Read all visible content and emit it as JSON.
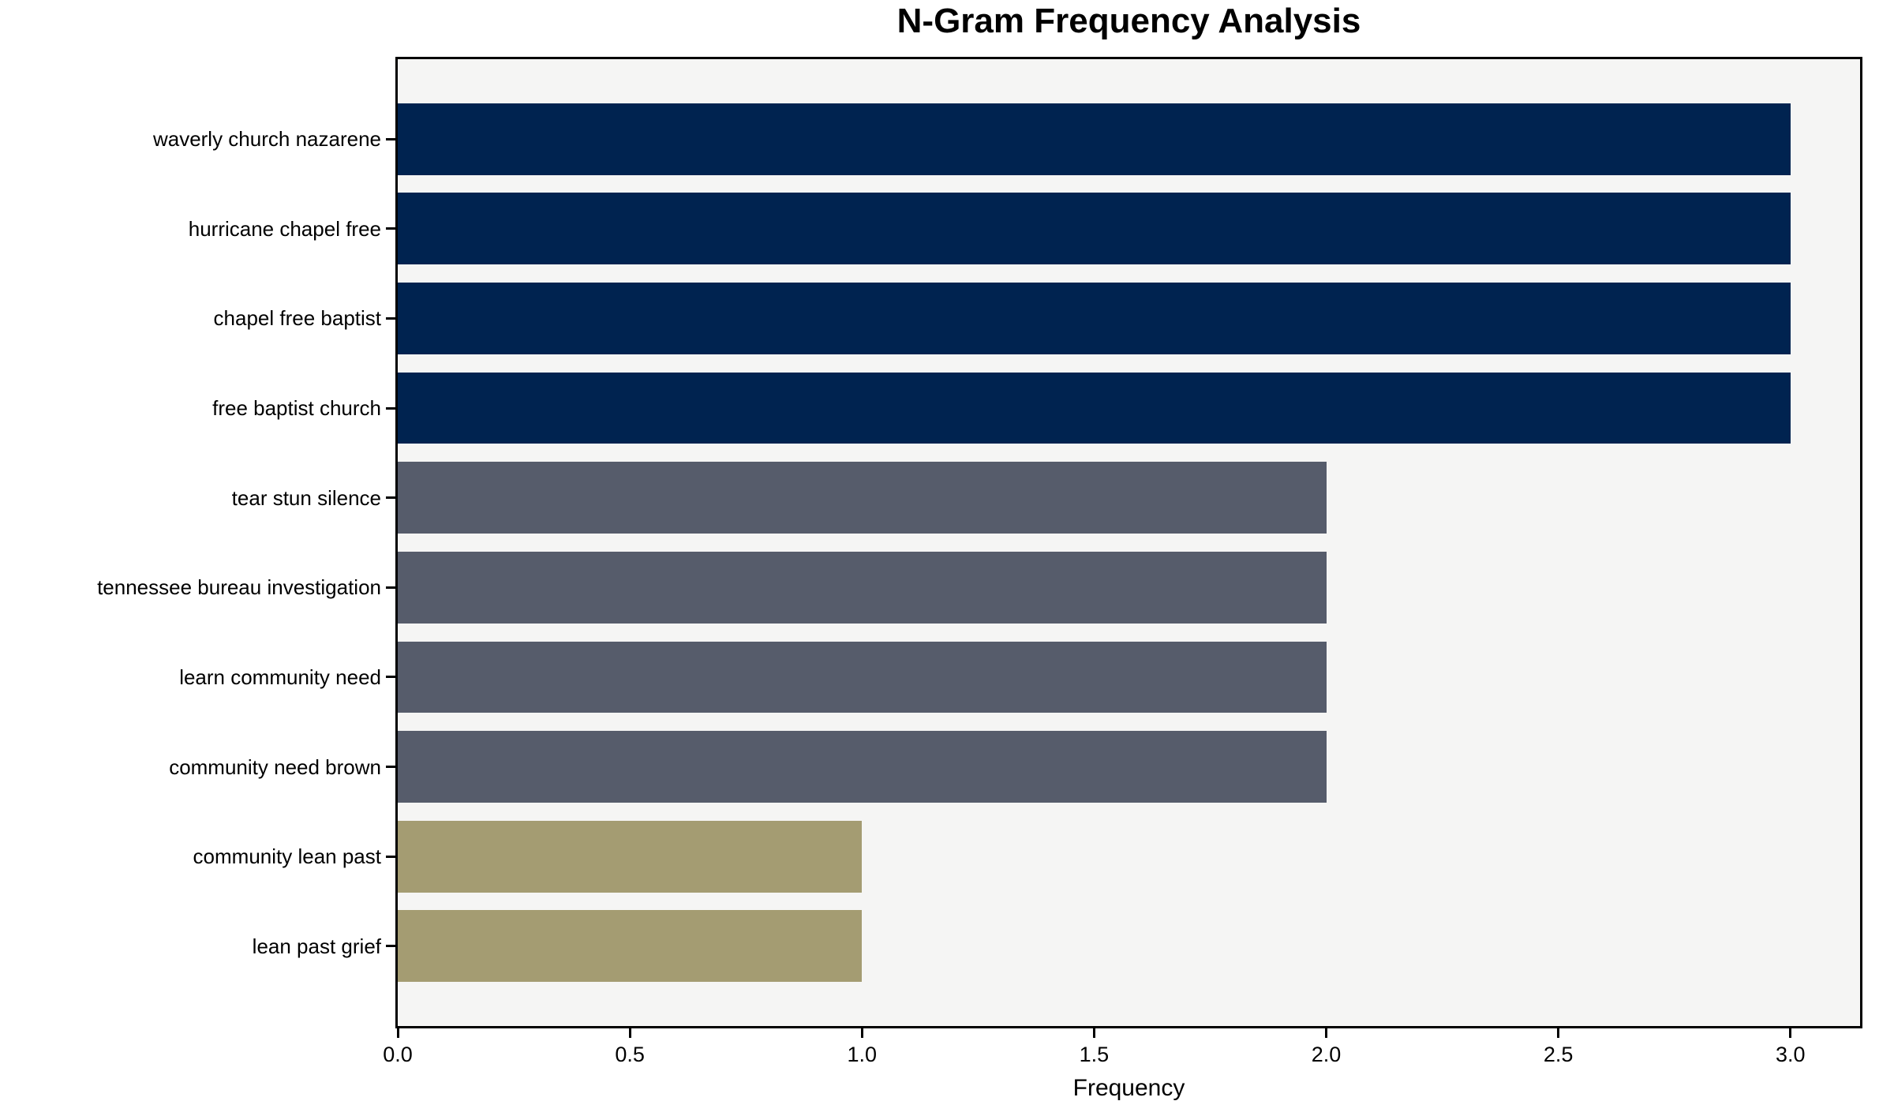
{
  "chart_data": {
    "type": "bar",
    "orientation": "horizontal",
    "title": "N-Gram Frequency Analysis",
    "xlabel": "Frequency",
    "ylabel": "",
    "categories": [
      "waverly church nazarene",
      "hurricane chapel free",
      "chapel free baptist",
      "free baptist church",
      "tear stun silence",
      "tennessee bureau investigation",
      "learn community need",
      "community need brown",
      "community lean past",
      "lean past grief"
    ],
    "values": [
      3,
      3,
      3,
      3,
      2,
      2,
      2,
      2,
      1,
      1
    ],
    "bar_colors": [
      "#002350",
      "#002350",
      "#002350",
      "#002350",
      "#565C6B",
      "#565C6B",
      "#565C6B",
      "#565C6B",
      "#A49C72",
      "#A49C72"
    ],
    "color_legend": {
      "frequency_3": "#002350",
      "frequency_2": "#565C6B",
      "frequency_1": "#A49C72"
    },
    "xlim": [
      0,
      3.15
    ],
    "xticks": [
      "0.0",
      "0.5",
      "1.0",
      "1.5",
      "2.0",
      "2.5",
      "3.0"
    ],
    "xtick_values": [
      0,
      0.5,
      1,
      1.5,
      2,
      2.5,
      3
    ],
    "grid": false,
    "legend_position": "none",
    "plot_background": "#F5F5F4",
    "figure_background": "#FFFFFF",
    "axis_color": "#000000",
    "text_color": "#000000"
  }
}
